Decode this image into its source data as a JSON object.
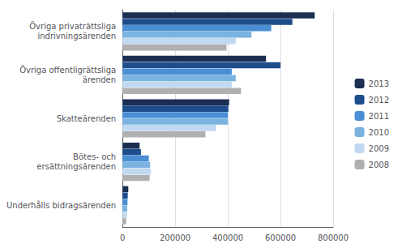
{
  "chart_data": {
    "type": "bar",
    "orientation": "horizontal",
    "categories": [
      "Underhålls bidragsärenden",
      "Bötes- och\nersättningsärenden",
      "Skatteärenden",
      "Övriga offentligrättsliga\närenden",
      "Övriga privaträttsliga\nindrivningsärenden"
    ],
    "series": [
      {
        "name": "2013",
        "color": "#1a2f52",
        "values": [
          22000,
          65000,
          405000,
          545000,
          730000
        ]
      },
      {
        "name": "2012",
        "color": "#1e4d8c",
        "values": [
          20000,
          70000,
          402000,
          600000,
          645000
        ]
      },
      {
        "name": "2011",
        "color": "#4a8fd4",
        "values": [
          19000,
          100000,
          400000,
          415000,
          565000
        ]
      },
      {
        "name": "2010",
        "color": "#7ab3e0",
        "values": [
          18000,
          105000,
          400000,
          430000,
          490000
        ]
      },
      {
        "name": "2009",
        "color": "#c0d9f0",
        "values": [
          17000,
          108000,
          355000,
          415000,
          430000
        ]
      },
      {
        "name": "2008",
        "color": "#b0b0b0",
        "values": [
          14000,
          103000,
          315000,
          450000,
          395000
        ]
      }
    ],
    "xlim": [
      0,
      800000
    ],
    "xticks": [
      0,
      200000,
      400000,
      600000,
      800000
    ],
    "grid": true,
    "legend": "right"
  }
}
